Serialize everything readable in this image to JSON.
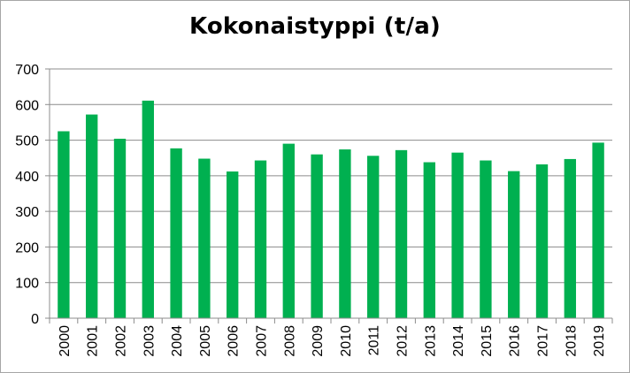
{
  "chart_data": {
    "type": "bar",
    "title": "Kokonaistyppi (t/a)",
    "xlabel": "",
    "ylabel": "",
    "categories": [
      "2000",
      "2001",
      "2002",
      "2003",
      "2004",
      "2005",
      "2006",
      "2007",
      "2008",
      "2009",
      "2010",
      "2011",
      "2012",
      "2013",
      "2014",
      "2015",
      "2016",
      "2017",
      "2018",
      "2019"
    ],
    "values": [
      525,
      572,
      504,
      611,
      477,
      448,
      412,
      443,
      490,
      460,
      474,
      456,
      472,
      438,
      465,
      443,
      413,
      432,
      447,
      493
    ],
    "ylim": [
      0,
      700
    ],
    "yticks": [
      0,
      100,
      200,
      300,
      400,
      500,
      600,
      700
    ],
    "grid": true,
    "legend": "none",
    "bar_color": "#00b050",
    "grid_color": "#8c8c8c"
  }
}
